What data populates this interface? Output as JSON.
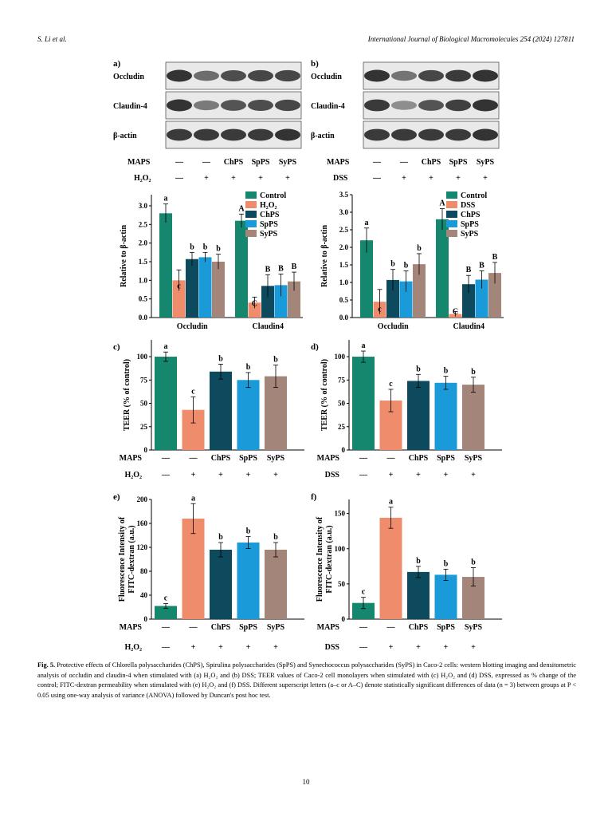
{
  "header": {
    "left": "S. Li et al.",
    "right": "International Journal of Biological Macromolecules 254 (2024) 127811"
  },
  "colors": {
    "control": "#14876e",
    "insult": "#ef8c6c",
    "chps": "#0d4a5d",
    "spps": "#1a9ad9",
    "syps": "#a4857a"
  },
  "panels": {
    "a": {
      "label": "a)",
      "blot_rows": [
        "Occludin",
        "Claudin-4",
        "β-actin"
      ],
      "maps_label": "MAPS",
      "maps_values": [
        "—",
        "—",
        "ChPS",
        "SpPS",
        "SyPS"
      ],
      "insult_label": "H₂O₂",
      "insult_values": [
        "—",
        "+",
        "+",
        "+",
        "+"
      ]
    },
    "b": {
      "label": "b)",
      "blot_rows": [
        "Occludin",
        "Claudin-4",
        "β-actin"
      ],
      "maps_label": "MAPS",
      "maps_values": [
        "—",
        "—",
        "ChPS",
        "SpPS",
        "SyPS"
      ],
      "insult_label": "DSS",
      "insult_values": [
        "—",
        "+",
        "+",
        "+",
        "+"
      ]
    },
    "c": {
      "label": "c)",
      "maps_label": "MAPS",
      "insult_label": "H₂O₂"
    },
    "d": {
      "label": "d)",
      "maps_label": "MAPS",
      "insult_label": "DSS"
    },
    "e": {
      "label": "e)",
      "maps_label": "MAPS",
      "insult_label": "H₂O₂"
    },
    "f": {
      "label": "f)",
      "maps_label": "MAPS",
      "insult_label": "DSS"
    }
  },
  "chart_data": [
    {
      "id": "a-bar",
      "type": "bar",
      "categories": [
        "Occludin",
        "Claudin4"
      ],
      "ylabel": "Relative to β-actin",
      "ylim": [
        0,
        3.3
      ],
      "yticks": [
        "0.0",
        "0.5",
        "1.0",
        "1.5",
        "2.0",
        "2.5",
        "3.0"
      ],
      "legend": [
        "Control",
        "H₂O₂",
        "ChPS",
        "SpPS",
        "SyPS"
      ],
      "legend_placement": "top-right",
      "series": [
        {
          "name": "Control",
          "values": [
            2.8,
            2.6
          ],
          "errors": [
            0.25,
            0.18
          ],
          "letters": [
            "a",
            "A"
          ]
        },
        {
          "name": "H₂O₂",
          "values": [
            1.0,
            0.4
          ],
          "errors": [
            0.28,
            0.15
          ],
          "letters": [
            "c",
            "C"
          ]
        },
        {
          "name": "ChPS",
          "values": [
            1.57,
            0.85
          ],
          "errors": [
            0.18,
            0.3
          ],
          "letters": [
            "b",
            "B"
          ]
        },
        {
          "name": "SpPS",
          "values": [
            1.62,
            0.87
          ],
          "errors": [
            0.13,
            0.3
          ],
          "letters": [
            "b",
            "B"
          ]
        },
        {
          "name": "SyPS",
          "values": [
            1.5,
            0.97
          ],
          "errors": [
            0.2,
            0.25
          ],
          "letters": [
            "b",
            "B"
          ]
        }
      ]
    },
    {
      "id": "b-bar",
      "type": "bar",
      "categories": [
        "Occludin",
        "Claudin4"
      ],
      "ylabel": "Relative to β-actin",
      "ylim": [
        0,
        3.5
      ],
      "yticks": [
        "0.0",
        "0.5",
        "1.0",
        "1.5",
        "2.0",
        "2.5",
        "3.0",
        "3.5"
      ],
      "legend": [
        "Control",
        "DSS",
        "ChPS",
        "SpPS",
        "SyPS"
      ],
      "legend_placement": "top-right",
      "series": [
        {
          "name": "Control",
          "values": [
            2.2,
            2.8
          ],
          "errors": [
            0.35,
            0.3
          ],
          "letters": [
            "a",
            "A"
          ]
        },
        {
          "name": "DSS",
          "values": [
            0.45,
            0.1
          ],
          "errors": [
            0.35,
            0.07
          ],
          "letters": [
            "c",
            "C"
          ]
        },
        {
          "name": "ChPS",
          "values": [
            1.07,
            0.95
          ],
          "errors": [
            0.3,
            0.25
          ],
          "letters": [
            "b",
            "B"
          ]
        },
        {
          "name": "SpPS",
          "values": [
            1.03,
            1.08
          ],
          "errors": [
            0.3,
            0.25
          ],
          "letters": [
            "b",
            "B"
          ]
        },
        {
          "name": "SyPS",
          "values": [
            1.52,
            1.27
          ],
          "errors": [
            0.3,
            0.3
          ],
          "letters": [
            "b",
            "B"
          ]
        }
      ]
    },
    {
      "id": "c-bar",
      "type": "bar",
      "ylabel": "TEER (% of control)",
      "ylim": [
        0,
        118
      ],
      "yticks": [
        "0",
        "25",
        "50",
        "75",
        "100"
      ],
      "maps_values": [
        "—",
        "—",
        "ChPS",
        "SpPS",
        "SyPS"
      ],
      "insult_values": [
        "—",
        "+",
        "+",
        "+",
        "+"
      ],
      "values": [
        100,
        43,
        84,
        75,
        79
      ],
      "errors": [
        5,
        14,
        8,
        8,
        12
      ],
      "letters": [
        "a",
        "c",
        "b",
        "b",
        "b"
      ]
    },
    {
      "id": "d-bar",
      "type": "bar",
      "ylabel": "TEER (% of control)",
      "ylim": [
        0,
        118
      ],
      "yticks": [
        "0",
        "25",
        "50",
        "75",
        "100"
      ],
      "maps_values": [
        "—",
        "—",
        "ChPS",
        "SpPS",
        "SyPS"
      ],
      "insult_values": [
        "—",
        "+",
        "+",
        "+",
        "+"
      ],
      "values": [
        100,
        53,
        74,
        72,
        70
      ],
      "errors": [
        6,
        12,
        7,
        7,
        8
      ],
      "letters": [
        "a",
        "c",
        "b",
        "b",
        "b"
      ]
    },
    {
      "id": "e-bar",
      "type": "bar",
      "ylabel": "Fluorescence Intensity of FITC-dextran (a.u.)",
      "ylim": [
        0,
        200
      ],
      "yticks": [
        "0",
        "40",
        "80",
        "120",
        "160",
        "200"
      ],
      "maps_values": [
        "—",
        "—",
        "ChPS",
        "SpPS",
        "SyPS"
      ],
      "insult_values": [
        "—",
        "+",
        "+",
        "+",
        "+"
      ],
      "values": [
        22,
        168,
        116,
        128,
        116
      ],
      "errors": [
        4,
        25,
        12,
        10,
        12
      ],
      "letters": [
        "c",
        "a",
        "b",
        "b",
        "b"
      ]
    },
    {
      "id": "f-bar",
      "type": "bar",
      "ylabel": "Fluorescence Intensity of FITC-dextran (a.u.)",
      "ylim": [
        0,
        170
      ],
      "yticks": [
        "0",
        "50",
        "100",
        "150"
      ],
      "maps_values": [
        "—",
        "—",
        "ChPS",
        "SpPS",
        "SyPS"
      ],
      "insult_values": [
        "—",
        "+",
        "+",
        "+",
        "+"
      ],
      "values": [
        23,
        144,
        67,
        63,
        60
      ],
      "errors": [
        8,
        15,
        8,
        8,
        13
      ],
      "letters": [
        "c",
        "a",
        "b",
        "b",
        "b"
      ]
    }
  ],
  "caption": {
    "fig": "Fig. 5.",
    "text": "Protective effects of Chlorella polysaccharides (ChPS), Spirulina polysaccharides (SpPS) and Synechococcus polysaccharides (SyPS) in Caco-2 cells: western blotting imaging and densitometric analysis of occludin and claudin-4 when stimulated with (a) H₂O₂ and (b) DSS; TEER values of Caco-2 cell monolayers when stimulated with (c) H₂O₂ and (d) DSS, expressed as % change of the control; FITC-dextran permeability when stimulated with (e) H₂O₂ and (f) DSS. Different superscript letters (a–c or A–C) denote statistically significant differences of data (n = 3) between groups at P < 0.05 using one-way analysis of variance (ANOVA) followed by Duncan's post hoc test."
  },
  "page_number": "10"
}
